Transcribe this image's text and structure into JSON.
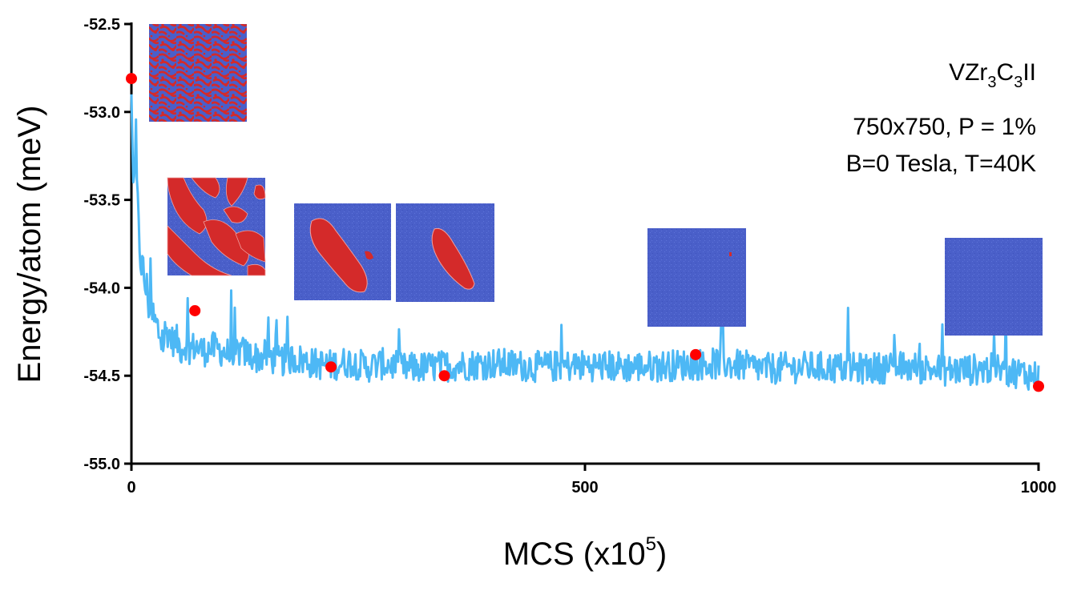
{
  "chart_data": {
    "type": "line",
    "title": "",
    "xlabel": {
      "base": "MCS (x10",
      "sup": "5",
      "tail": ")"
    },
    "ylabel": "Energy/atom (meV)",
    "xlim": [
      0,
      1000
    ],
    "ylim": [
      -55.0,
      -52.5
    ],
    "x_ticks": [
      0,
      500,
      1000
    ],
    "x_tick_labels": [
      "0",
      "500",
      "1000"
    ],
    "y_ticks": [
      -52.5,
      -53.0,
      -53.5,
      -54.0,
      -54.5,
      -55.0
    ],
    "y_tick_labels": [
      "-52.5",
      "-53.0",
      "-53.5",
      "-54.0",
      "-54.5",
      "-55.0"
    ],
    "grid": false,
    "legend": "none",
    "colors": {
      "series": "#4db8f5",
      "marker": "#ff0000",
      "snapshot_blue": "#4a5fc9",
      "snapshot_red": "#d42a2a",
      "axis": "#000000"
    },
    "series": [
      {
        "x": [
          0,
          2,
          5,
          8,
          12,
          16,
          20,
          25,
          30,
          35,
          40,
          45,
          50,
          55,
          60,
          65,
          70,
          80,
          90,
          100,
          110,
          120,
          130,
          140,
          150,
          160,
          180,
          200,
          220,
          240,
          260,
          280,
          300,
          330,
          360,
          400,
          450,
          500,
          550,
          600,
          650,
          700,
          750,
          800,
          850,
          900,
          950,
          1000
        ],
        "y": [
          -52.9,
          -53.4,
          -53.3,
          -53.7,
          -53.9,
          -54.0,
          -54.1,
          -54.2,
          -54.25,
          -54.3,
          -54.25,
          -54.3,
          -54.3,
          -54.35,
          -54.32,
          -54.35,
          -54.33,
          -54.36,
          -54.34,
          -54.36,
          -54.38,
          -54.36,
          -54.38,
          -54.4,
          -54.38,
          -54.42,
          -54.4,
          -54.43,
          -54.44,
          -54.42,
          -54.45,
          -54.43,
          -54.46,
          -54.45,
          -54.44,
          -54.43,
          -54.45,
          -54.44,
          -54.45,
          -54.44,
          -54.43,
          -54.46,
          -54.45,
          -54.46,
          -54.45,
          -54.47,
          -54.46,
          -54.5
        ]
      }
    ],
    "markers": {
      "x": [
        0,
        70,
        220,
        345,
        622,
        1000
      ],
      "y": [
        -52.81,
        -54.13,
        -54.45,
        -54.5,
        -54.38,
        -54.56
      ]
    },
    "annotations": [
      {
        "parts": [
          "VZr",
          "3",
          "C",
          "3",
          "II"
        ]
      },
      {
        "text": "750x750, P = 1%"
      },
      {
        "text": "B=0 Tesla, T=40K"
      }
    ],
    "snapshots": [
      {
        "pattern": "dense"
      },
      {
        "pattern": "stripes"
      },
      {
        "pattern": "large-blob"
      },
      {
        "pattern": "small-blob"
      },
      {
        "pattern": "tiny-dot"
      },
      {
        "pattern": "uniform"
      }
    ]
  }
}
